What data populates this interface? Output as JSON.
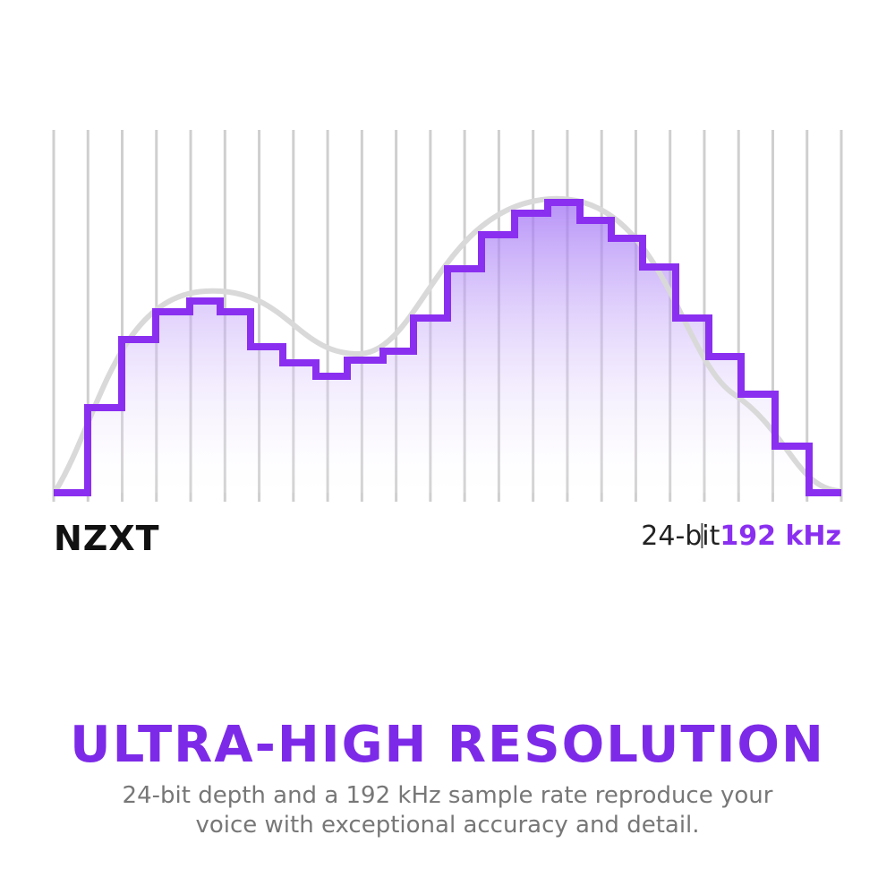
{
  "logo": "NZXT",
  "spec": {
    "bit_depth": "24-bit",
    "sample_rate": "192 kHz"
  },
  "headline": "ULTRA-HIGH RESOLUTION",
  "description": [
    "24-bit depth and a 192 kHz sample rate reproduce your",
    "voice with exceptional accuracy and detail."
  ]
}
